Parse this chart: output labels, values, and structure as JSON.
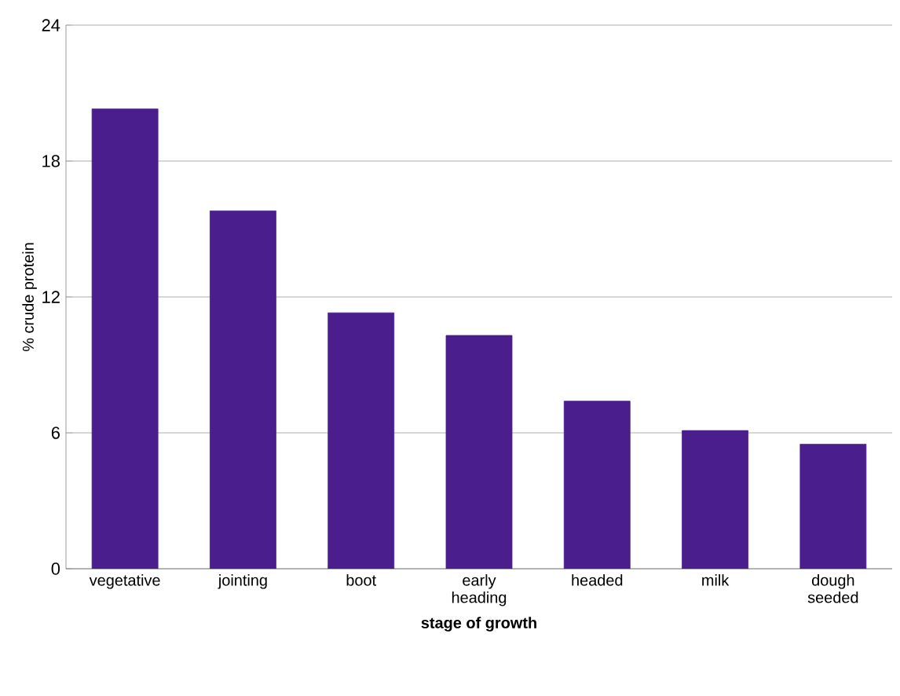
{
  "chart_data": {
    "type": "bar",
    "xlabel": "stage of growth",
    "ylabel": "% crude protein",
    "categories": [
      "vegetative",
      "jointing",
      "boot",
      "early heading",
      "headed",
      "milk",
      "dough seeded"
    ],
    "values": [
      20.3,
      15.8,
      11.3,
      10.3,
      7.4,
      6.1,
      5.5
    ],
    "color": "#4a1e8c",
    "ylim": [
      0,
      24
    ],
    "yticks": [
      0,
      6,
      12,
      18,
      24
    ],
    "grid": "y"
  }
}
